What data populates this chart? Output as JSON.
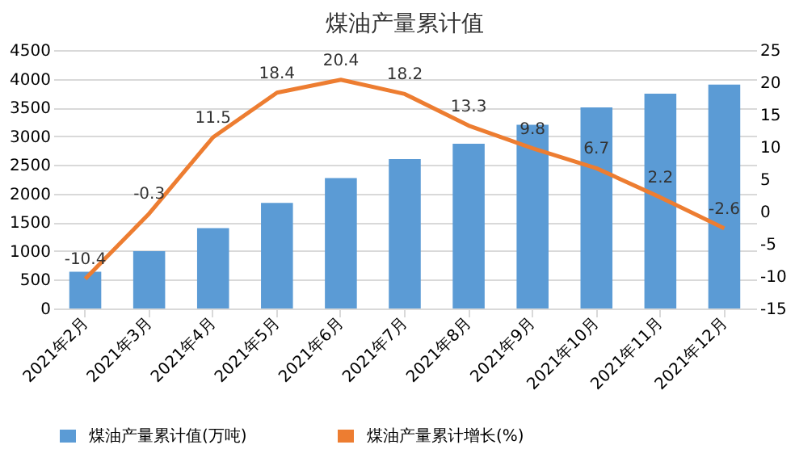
{
  "chart_data": {
    "type": "bar",
    "title": "煤油产量累计值",
    "categories": [
      "2021年2月",
      "2021年3月",
      "2021年4月",
      "2021年5月",
      "2021年6月",
      "2021年7月",
      "2021年8月",
      "2021年9月",
      "2021年10月",
      "2021年11月",
      "2021年12月"
    ],
    "series": [
      {
        "name": "煤油产量累计值(万吨)",
        "color": "#5b9bd5",
        "values": [
          640,
          1000,
          1400,
          1840,
          2270,
          2600,
          2870,
          3200,
          3500,
          3740,
          3900
        ]
      },
      {
        "name": "煤油产量累计增长(%)",
        "type": "line",
        "axis": "y2",
        "color": "#ed7d31",
        "values": [
          -10.4,
          -0.3,
          11.5,
          18.4,
          20.4,
          18.2,
          13.3,
          9.8,
          6.7,
          2.2,
          -2.6
        ],
        "value_labels": [
          "-10.4",
          "-0.3",
          "11.5",
          "18.4",
          "20.4",
          "18.2",
          "13.3",
          "9.8",
          "6.7",
          "2.2",
          "-2.6"
        ]
      }
    ],
    "ylim": [
      0,
      4500
    ],
    "yticks": [
      0,
      500,
      1000,
      1500,
      2000,
      2500,
      3000,
      3500,
      4000,
      4500
    ],
    "y2lim": [
      -15,
      25
    ],
    "y2ticks": [
      -15,
      -10,
      -5,
      0,
      5,
      10,
      15,
      20,
      25
    ],
    "grid": "y",
    "legend": "bottom",
    "marker": "none",
    "line_style": "solid"
  }
}
